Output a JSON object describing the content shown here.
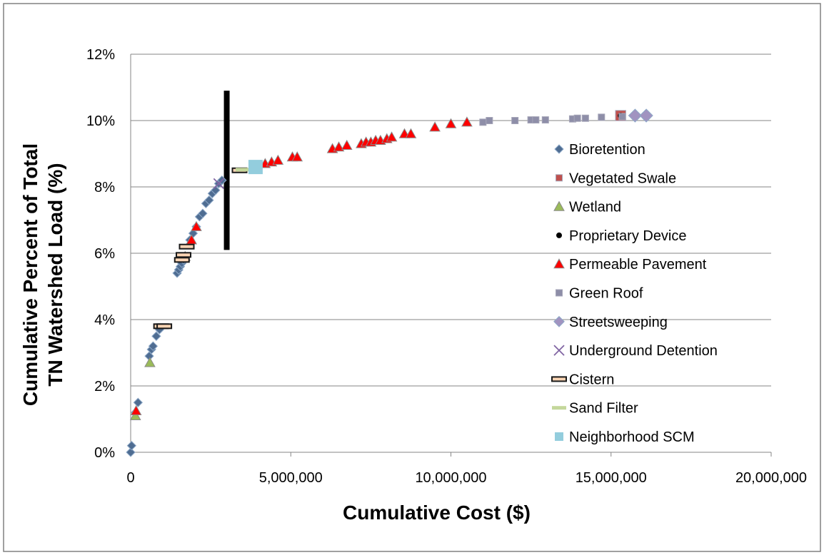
{
  "chart_data": {
    "type": "scatter",
    "title": "",
    "xlabel": "Cumulative Cost ($)",
    "ylabel_lines": [
      "Cumulative Percent of Total",
      "TN Watershed Load (%)"
    ],
    "xlim": [
      0,
      20000000
    ],
    "ylim": [
      0,
      12
    ],
    "x_ticks": [
      0,
      5000000,
      10000000,
      15000000,
      20000000
    ],
    "x_tick_labels": [
      "0",
      "5,000,000",
      "10,000,000",
      "15,000,000",
      "20,000,000"
    ],
    "y_ticks": [
      0,
      2,
      4,
      6,
      8,
      10,
      12
    ],
    "y_tick_labels": [
      "0%",
      "2%",
      "4%",
      "6%",
      "8%",
      "10%",
      "12%"
    ],
    "grid": "horizontal",
    "legend_position": "right",
    "reference_line": {
      "x": 3000000,
      "y_range": [
        6.1,
        10.9
      ],
      "color": "#000000"
    },
    "series": [
      {
        "name": "Bioretention",
        "marker": "diamond",
        "color": "#4F6D92",
        "points": [
          [
            0,
            0.0
          ],
          [
            30000,
            0.2
          ],
          [
            150000,
            1.2
          ],
          [
            230000,
            1.5
          ],
          [
            580000,
            2.9
          ],
          [
            650000,
            3.1
          ],
          [
            700000,
            3.2
          ],
          [
            800000,
            3.5
          ],
          [
            900000,
            3.7
          ],
          [
            1450000,
            5.4
          ],
          [
            1500000,
            5.5
          ],
          [
            1550000,
            5.6
          ],
          [
            1600000,
            5.7
          ],
          [
            1650000,
            5.8
          ],
          [
            1850000,
            6.4
          ],
          [
            1950000,
            6.6
          ],
          [
            2050000,
            6.8
          ],
          [
            2150000,
            7.1
          ],
          [
            2250000,
            7.2
          ],
          [
            2350000,
            7.5
          ],
          [
            2450000,
            7.6
          ],
          [
            2550000,
            7.8
          ],
          [
            2650000,
            7.9
          ],
          [
            2750000,
            8.1
          ],
          [
            2850000,
            8.2
          ]
        ]
      },
      {
        "name": "Vegetated Swale",
        "marker": "square",
        "color": "#C0504D",
        "points": [
          [
            15300000,
            10.15
          ]
        ]
      },
      {
        "name": "Wetland",
        "marker": "triangle",
        "color": "#9BBB59",
        "points": [
          [
            150000,
            1.1
          ],
          [
            600000,
            2.7
          ]
        ]
      },
      {
        "name": "Proprietary Device",
        "marker": "circle",
        "color": "#000000",
        "points": [
          [
            15300000,
            10.15
          ]
        ]
      },
      {
        "name": "Permeable Pavement",
        "marker": "triangle",
        "color": "#FF0000",
        "points": [
          [
            170000,
            1.25
          ],
          [
            1700000,
            5.9
          ],
          [
            1900000,
            6.4
          ],
          [
            2050000,
            6.8
          ],
          [
            4200000,
            8.7
          ],
          [
            4400000,
            8.75
          ],
          [
            4600000,
            8.8
          ],
          [
            5050000,
            8.9
          ],
          [
            5200000,
            8.9
          ],
          [
            6300000,
            9.15
          ],
          [
            6500000,
            9.2
          ],
          [
            6750000,
            9.25
          ],
          [
            7200000,
            9.3
          ],
          [
            7350000,
            9.35
          ],
          [
            7500000,
            9.35
          ],
          [
            7650000,
            9.4
          ],
          [
            7800000,
            9.4
          ],
          [
            8000000,
            9.45
          ],
          [
            8150000,
            9.5
          ],
          [
            8550000,
            9.6
          ],
          [
            8750000,
            9.6
          ],
          [
            9500000,
            9.8
          ],
          [
            10000000,
            9.9
          ],
          [
            10500000,
            9.95
          ]
        ]
      },
      {
        "name": "Green Roof",
        "marker": "square",
        "color": "#8E8EA8",
        "points": [
          [
            11000000,
            9.95
          ],
          [
            11200000,
            10.0
          ],
          [
            12000000,
            10.0
          ],
          [
            12500000,
            10.02
          ],
          [
            12650000,
            10.02
          ],
          [
            12950000,
            10.02
          ],
          [
            13800000,
            10.05
          ],
          [
            13950000,
            10.07
          ],
          [
            14200000,
            10.07
          ],
          [
            14700000,
            10.1
          ],
          [
            15350000,
            10.12
          ]
        ]
      },
      {
        "name": "Streetsweeping",
        "marker": "diamond",
        "color": "#A193C0",
        "points": [
          [
            15750000,
            10.15
          ],
          [
            16100000,
            10.15
          ]
        ]
      },
      {
        "name": "Underground Detention",
        "marker": "x",
        "color": "#8064A2",
        "points": [
          [
            2750000,
            8.1
          ]
        ]
      },
      {
        "name": "Cistern",
        "marker": "dash",
        "color": "#1A1A1A",
        "points": [
          [
            950000,
            3.8
          ],
          [
            1050000,
            3.8
          ],
          [
            1600000,
            5.8
          ],
          [
            1650000,
            5.95
          ],
          [
            1750000,
            6.2
          ],
          [
            3400000,
            8.5
          ]
        ]
      },
      {
        "name": "Sand Filter",
        "marker": "dash-light",
        "color": "#C4D79B",
        "points": [
          [
            3500000,
            8.52
          ]
        ]
      },
      {
        "name": "Neighborhood SCM",
        "marker": "square-big",
        "color": "#93CDDD",
        "points": [
          [
            3900000,
            8.6
          ]
        ]
      }
    ]
  }
}
